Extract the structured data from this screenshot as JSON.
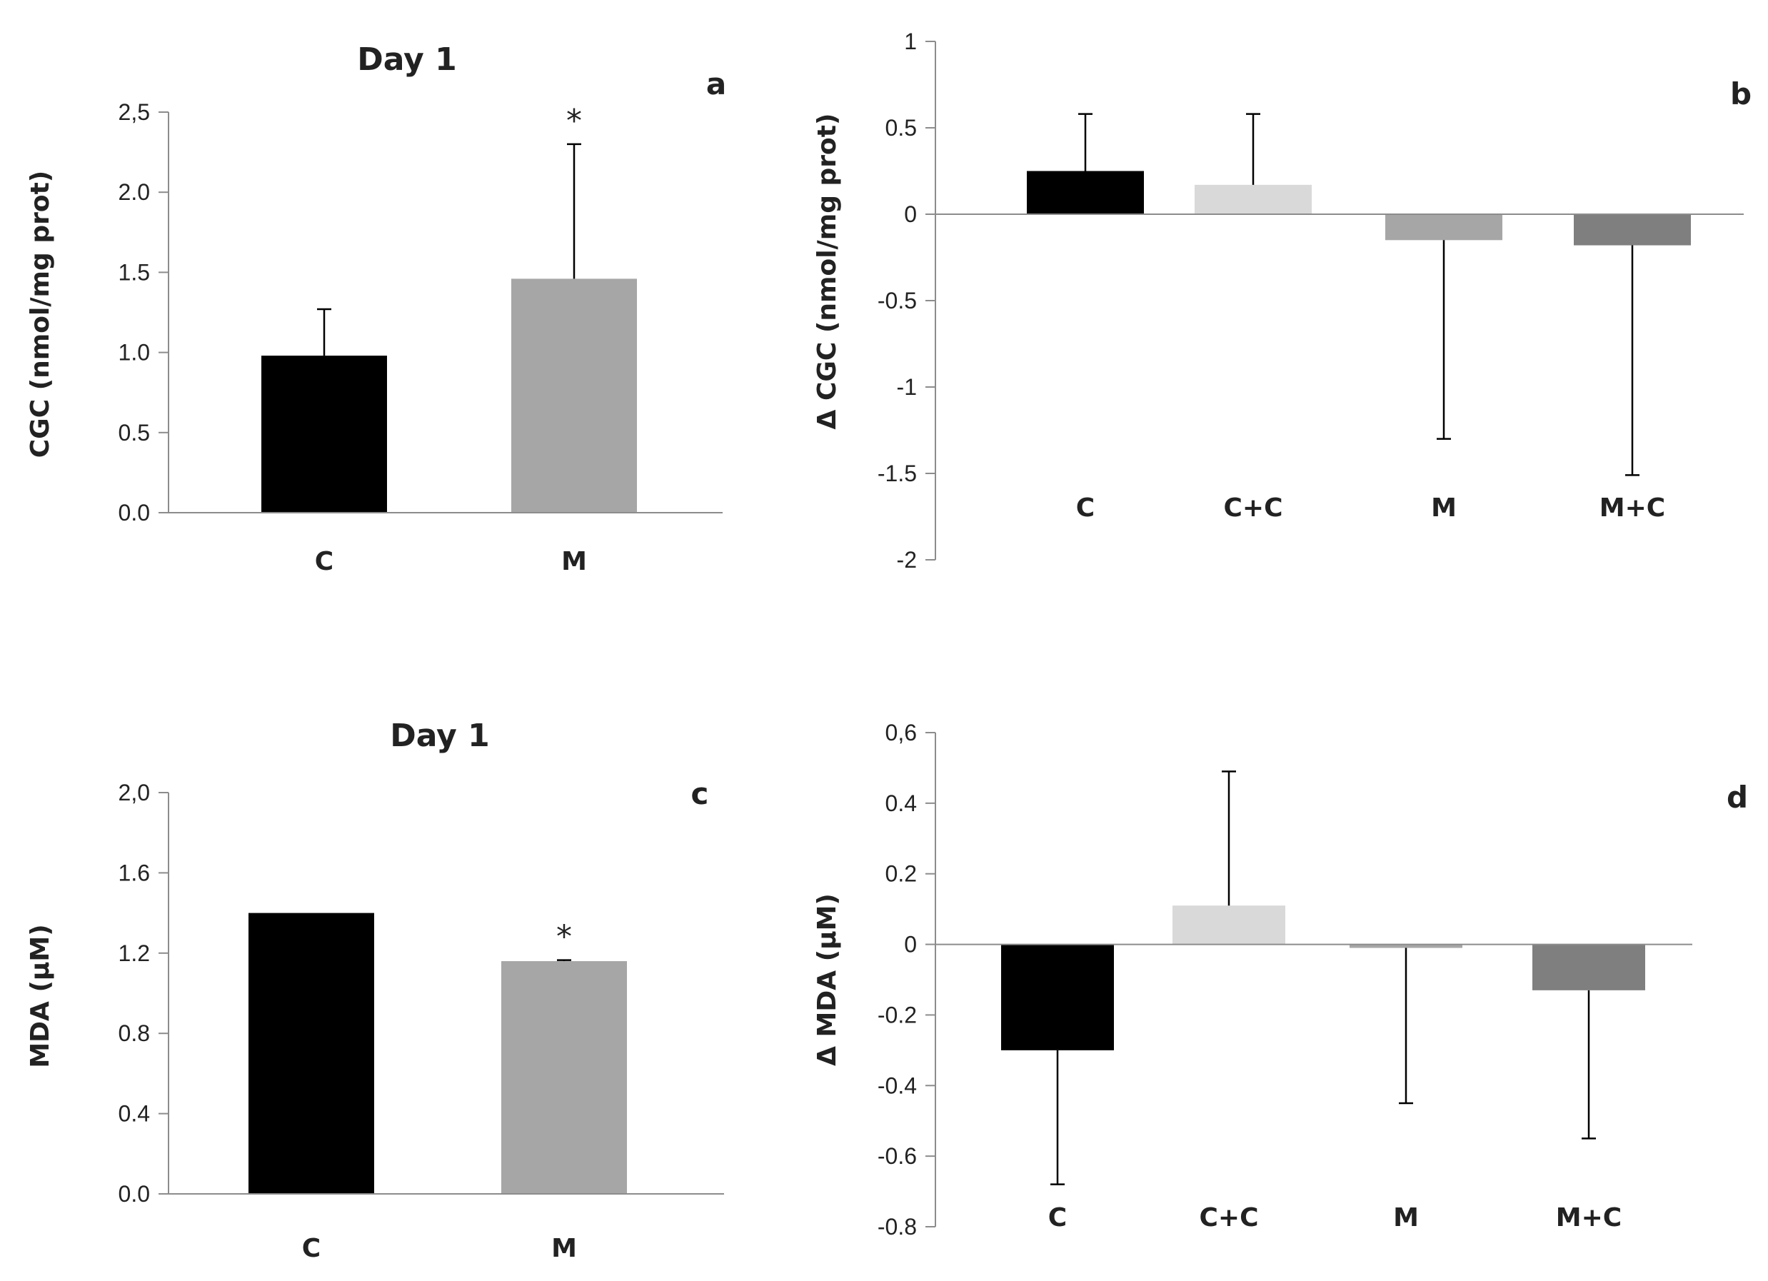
{
  "chart_data": [
    {
      "id": "a",
      "type": "bar",
      "panel_label": "a",
      "title": "Day 1",
      "ylabel": "CGC (nmol/mg prot)",
      "xlabel": "",
      "categories": [
        "C",
        "M"
      ],
      "values": [
        0.98,
        1.46
      ],
      "errors": [
        0.29,
        0.84
      ],
      "colors": [
        "#000000",
        "#a6a6a6"
      ],
      "annotations": [
        "",
        "*"
      ],
      "ylim": [
        0,
        2.5
      ],
      "yticks": [
        0,
        0.5,
        1.0,
        1.5,
        2.0,
        2.5
      ],
      "ytick_labels": [
        "0.0",
        "0.5",
        "1.0",
        "1.5",
        "2.0",
        "2,5"
      ],
      "grid": false
    },
    {
      "id": "b",
      "type": "bar",
      "panel_label": "b",
      "title": "",
      "ylabel": "Δ CGC (nmol/mg prot)",
      "xlabel": "",
      "categories": [
        "C",
        "C+C",
        "M",
        "M+C"
      ],
      "values": [
        0.25,
        0.17,
        -0.15,
        -0.18
      ],
      "errors": [
        0.33,
        0.41,
        1.15,
        1.33
      ],
      "colors": [
        "#000000",
        "#d9d9d9",
        "#a6a6a6",
        "#7f7f7f"
      ],
      "annotations": [
        "",
        "",
        "",
        ""
      ],
      "ylim": [
        -2,
        1
      ],
      "yticks": [
        -2,
        -1.5,
        -1,
        -0.5,
        0,
        0.5,
        1
      ],
      "ytick_labels": [
        "-2",
        "-1.5",
        "-1",
        "-0.5",
        "0",
        "0.5",
        "1"
      ],
      "grid": false
    },
    {
      "id": "c",
      "type": "bar",
      "panel_label": "c",
      "title": "Day 1",
      "ylabel": "MDA  (µM)",
      "xlabel": "",
      "categories": [
        "C",
        "M"
      ],
      "values": [
        1.4,
        1.16
      ],
      "errors": [
        0.0,
        0.005
      ],
      "colors": [
        "#000000",
        "#a6a6a6"
      ],
      "annotations": [
        "",
        "*"
      ],
      "ylim": [
        0,
        2.0
      ],
      "yticks": [
        0,
        0.4,
        0.8,
        1.2,
        1.6,
        2.0
      ],
      "ytick_labels": [
        "0.0",
        "0.4",
        "0.8",
        "1.2",
        "1.6",
        "2,0"
      ],
      "grid": false
    },
    {
      "id": "d",
      "type": "bar",
      "panel_label": "d",
      "title": "",
      "ylabel": "Δ MDA  (µM)",
      "xlabel": "",
      "categories": [
        "C",
        "C+C",
        "M",
        "M+C"
      ],
      "values": [
        -0.3,
        0.11,
        -0.01,
        -0.13
      ],
      "errors": [
        0.38,
        0.38,
        0.44,
        0.42
      ],
      "colors": [
        "#000000",
        "#d9d9d9",
        "#a6a6a6",
        "#7f7f7f"
      ],
      "annotations": [
        "",
        "",
        "",
        ""
      ],
      "ylim": [
        -0.8,
        0.6
      ],
      "yticks": [
        -0.8,
        -0.6,
        -0.4,
        -0.2,
        0,
        0.2,
        0.4,
        0.6
      ],
      "ytick_labels": [
        "-0.8",
        "-0.6",
        "-0.4",
        "-0.2",
        "0",
        "0.2",
        "0.4",
        "0,6"
      ],
      "grid": false
    }
  ]
}
